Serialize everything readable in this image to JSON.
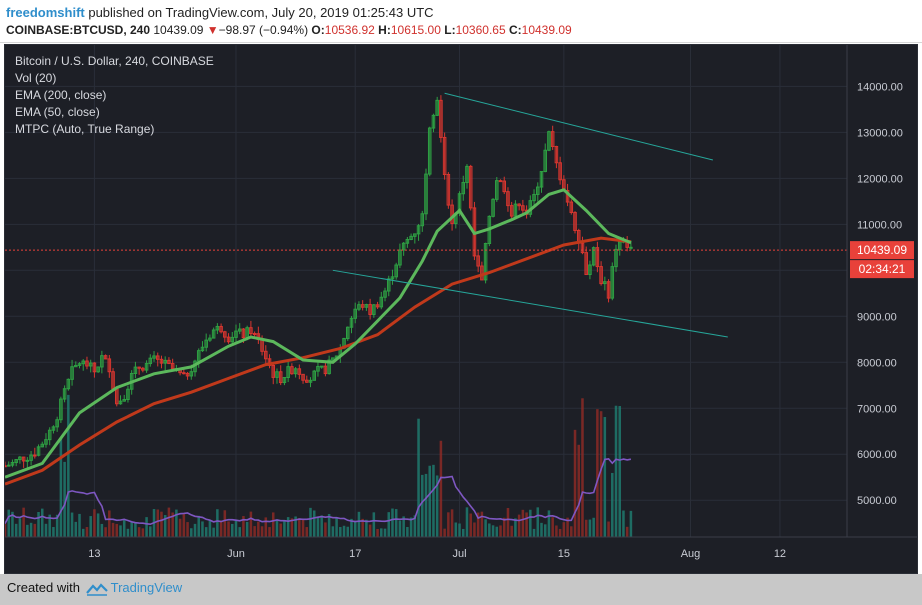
{
  "header": {
    "author": "freedomshift",
    "published_text": " published on TradingView.com, July 20, 2019 01:25:43 UTC",
    "symbol": "COINBASE:BTCUSD, 240",
    "last": "10439.09",
    "arrow": "▼",
    "change": "−98.97 (−0.94%)",
    "o_label": "O:",
    "o_val": "10536.92",
    "h_label": "H:",
    "h_val": "10615.00",
    "l_label": "L:",
    "l_val": "10360.65",
    "c_label": "C:",
    "c_val": "10439.09"
  },
  "legend": [
    "Bitcoin / U.S. Dollar, 240, COINBASE",
    "Vol (20)",
    "EMA (200, close)",
    "EMA (50, close)",
    "MTPC (Auto, True Range)"
  ],
  "price_label": "10439.09",
  "countdown_label": "02:34:21",
  "footer": {
    "created_with": "Created with",
    "brand": "TradingView"
  },
  "colors": {
    "background": "#1d1f26",
    "grid": "#2a2e39",
    "up": "#2ea043",
    "down": "#d9362f",
    "ema50": "#5cb85c",
    "ema200": "#c0391b",
    "channel": "#26a69a",
    "volume_ma": "#7e57c2",
    "price_line": "#e8413a"
  },
  "chart_data": {
    "type": "candlestick",
    "symbol": "BTCUSD",
    "interval": "240",
    "y_ticks": [
      5000,
      6000,
      7000,
      8000,
      9000,
      10000,
      11000,
      12000,
      13000,
      14000
    ],
    "y_tick_labels": [
      "5000.00",
      "6000.00",
      "7000.00",
      "8000.00",
      "9000.00",
      "10000.00",
      "11000.00",
      "12000.00",
      "13000.00",
      "14000.00"
    ],
    "ylim": [
      4200,
      14900
    ],
    "x_tick_labels": [
      "13",
      "Jun",
      "17",
      "Jul",
      "15",
      "Aug",
      "12"
    ],
    "x_tick_days": [
      12,
      31,
      47,
      61,
      75,
      92,
      104
    ],
    "xlim_days": [
      0,
      113
    ],
    "day_index_note_removed": true,
    "price_path": [
      [
        0,
        5750
      ],
      [
        1,
        5800
      ],
      [
        2,
        5900
      ],
      [
        3,
        5950
      ],
      [
        4,
        6050
      ],
      [
        5,
        6250
      ],
      [
        6,
        6500
      ],
      [
        7,
        6850
      ],
      [
        8,
        7350
      ],
      [
        9,
        7800
      ],
      [
        10,
        8000
      ],
      [
        11,
        7950
      ],
      [
        12,
        7800
      ],
      [
        13,
        8100
      ],
      [
        14,
        7900
      ],
      [
        15,
        7100
      ],
      [
        16,
        7300
      ],
      [
        17,
        7700
      ],
      [
        18,
        7900
      ],
      [
        19,
        7950
      ],
      [
        20,
        8050
      ],
      [
        21,
        8000
      ],
      [
        22,
        7900
      ],
      [
        23,
        7800
      ],
      [
        24,
        7650
      ],
      [
        25,
        7900
      ],
      [
        26,
        8200
      ],
      [
        27,
        8500
      ],
      [
        28,
        8700
      ],
      [
        29,
        8750
      ],
      [
        30,
        8550
      ],
      [
        31,
        8650
      ],
      [
        32,
        8600
      ],
      [
        33,
        8700
      ],
      [
        34,
        8450
      ],
      [
        35,
        8100
      ],
      [
        36,
        7750
      ],
      [
        37,
        7650
      ],
      [
        38,
        7800
      ],
      [
        39,
        7900
      ],
      [
        40,
        7700
      ],
      [
        41,
        7650
      ],
      [
        42,
        7800
      ],
      [
        43,
        7850
      ],
      [
        44,
        8050
      ],
      [
        45,
        8300
      ],
      [
        46,
        8800
      ],
      [
        47,
        9150
      ],
      [
        48,
        9250
      ],
      [
        49,
        9100
      ],
      [
        50,
        9300
      ],
      [
        51,
        9550
      ],
      [
        52,
        9950
      ],
      [
        53,
        10400
      ],
      [
        54,
        10650
      ],
      [
        55,
        10850
      ],
      [
        56,
        11200
      ],
      [
        57,
        13200
      ],
      [
        58,
        13750
      ],
      [
        59,
        12000
      ],
      [
        60,
        11000
      ],
      [
        61,
        11600
      ],
      [
        62,
        12300
      ],
      [
        63,
        10300
      ],
      [
        64,
        9750
      ],
      [
        65,
        11200
      ],
      [
        66,
        12000
      ],
      [
        67,
        11800
      ],
      [
        68,
        11200
      ],
      [
        69,
        11500
      ],
      [
        70,
        11250
      ],
      [
        71,
        11600
      ],
      [
        72,
        12200
      ],
      [
        73,
        12950
      ],
      [
        74,
        12300
      ],
      [
        75,
        11800
      ],
      [
        76,
        11200
      ],
      [
        77,
        10700
      ],
      [
        78,
        10000
      ],
      [
        79,
        10400
      ],
      [
        80,
        9800
      ],
      [
        81,
        9500
      ],
      [
        82,
        10500
      ],
      [
        83,
        10650
      ],
      [
        84,
        10439.09
      ]
    ],
    "ema50_path": [
      [
        0,
        5500
      ],
      [
        5,
        5800
      ],
      [
        10,
        6900
      ],
      [
        15,
        7450
      ],
      [
        20,
        7750
      ],
      [
        25,
        7900
      ],
      [
        30,
        8350
      ],
      [
        33,
        8550
      ],
      [
        36,
        8450
      ],
      [
        40,
        8050
      ],
      [
        44,
        8000
      ],
      [
        47,
        8400
      ],
      [
        50,
        8900
      ],
      [
        53,
        9400
      ],
      [
        56,
        10200
      ],
      [
        58,
        10850
      ],
      [
        61,
        11300
      ],
      [
        63,
        10800
      ],
      [
        65,
        10900
      ],
      [
        68,
        11100
      ],
      [
        70,
        11250
      ],
      [
        73,
        11650
      ],
      [
        75,
        11750
      ],
      [
        78,
        11300
      ],
      [
        81,
        10800
      ],
      [
        84,
        10600
      ]
    ],
    "ema200_path": [
      [
        0,
        5350
      ],
      [
        5,
        5650
      ],
      [
        10,
        6200
      ],
      [
        15,
        6700
      ],
      [
        20,
        7100
      ],
      [
        25,
        7350
      ],
      [
        30,
        7650
      ],
      [
        35,
        7950
      ],
      [
        40,
        8100
      ],
      [
        45,
        8300
      ],
      [
        50,
        8600
      ],
      [
        55,
        9200
      ],
      [
        60,
        9700
      ],
      [
        65,
        9950
      ],
      [
        70,
        10250
      ],
      [
        75,
        10550
      ],
      [
        80,
        10700
      ],
      [
        84,
        10620
      ]
    ],
    "channel_upper": [
      [
        59,
        13850
      ],
      [
        95,
        12400
      ]
    ],
    "channel_lower": [
      [
        44,
        10000
      ],
      [
        97,
        8550
      ]
    ],
    "current_price": 10439.09,
    "volume_ma_level": "low",
    "volume_spikes_days": [
      8,
      56,
      57,
      58,
      77,
      80,
      82
    ]
  }
}
